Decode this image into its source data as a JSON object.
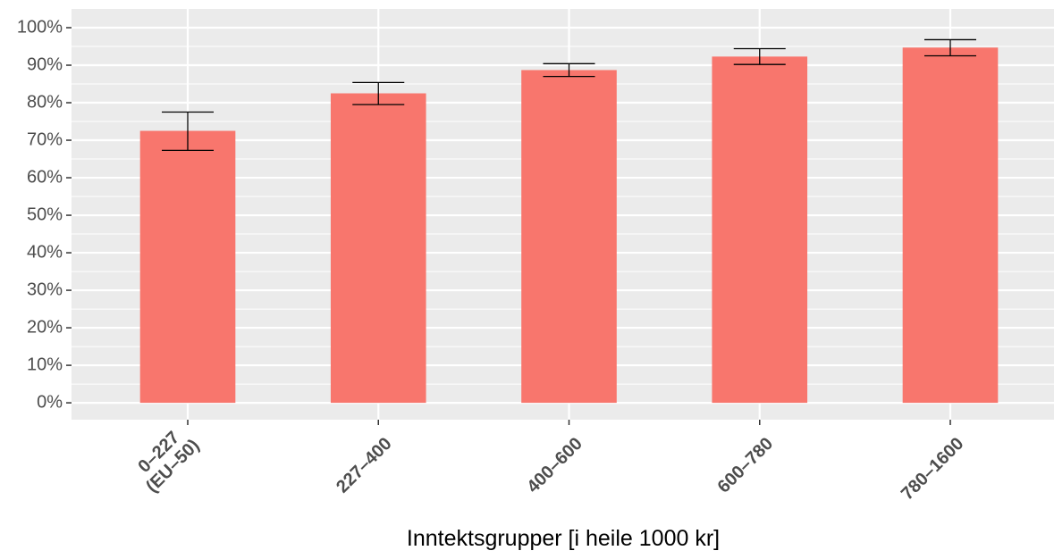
{
  "chart_data": {
    "type": "bar",
    "x_label": "Inntektsgrupper [i heile 1000 kr]",
    "categories": [
      [
        "0–227",
        "(EU–50)"
      ],
      [
        "227–400"
      ],
      [
        "400–600"
      ],
      [
        "600–780"
      ],
      [
        "780–1600"
      ]
    ],
    "values": [
      72.5,
      82.5,
      88.7,
      92.3,
      94.7
    ],
    "ci_low": [
      67.3,
      79.5,
      87.0,
      90.2,
      92.5
    ],
    "ci_high": [
      77.5,
      85.4,
      90.4,
      94.4,
      96.8
    ],
    "color": "#f8766d",
    "ylim": [
      -4.5,
      105
    ],
    "yticks": [
      {
        "value": 0,
        "label": "0%"
      },
      {
        "value": 10,
        "label": "10%"
      },
      {
        "value": 20,
        "label": "20%"
      },
      {
        "value": 30,
        "label": "30%"
      },
      {
        "value": 40,
        "label": "40%"
      },
      {
        "value": 50,
        "label": "50%"
      },
      {
        "value": 60,
        "label": "60%"
      },
      {
        "value": 70,
        "label": "70%"
      },
      {
        "value": 80,
        "label": "80%"
      },
      {
        "value": 90,
        "label": "90%"
      },
      {
        "value": 100,
        "label": "100%"
      }
    ],
    "minor_yticks": [
      5,
      15,
      25,
      35,
      45,
      55,
      65,
      75,
      85,
      95
    ],
    "grid": true
  }
}
